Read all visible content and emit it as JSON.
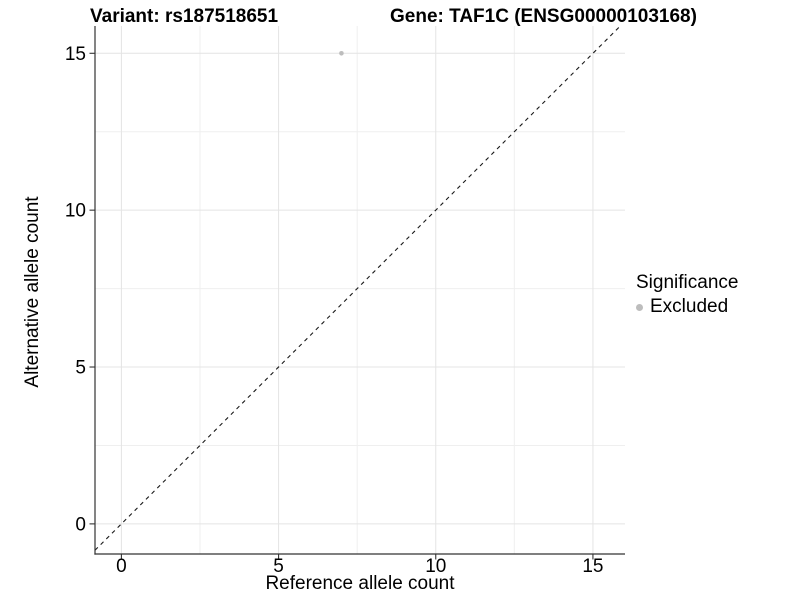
{
  "chart_data": {
    "type": "scatter",
    "title_left": "Variant: rs187518651",
    "title_right": "Gene: TAF1C (ENSG00000103168)",
    "variant_id": "rs187518651",
    "gene_symbol": "TAF1C",
    "gene_ensembl_id": "ENSG00000103168",
    "xlabel": "Reference allele count",
    "ylabel": "Alternative allele count",
    "xlim": [
      -0.84,
      16.02
    ],
    "ylim": [
      -0.96,
      15.87
    ],
    "x_major_ticks": [
      0,
      5,
      10,
      15
    ],
    "y_major_ticks": [
      0,
      5,
      10,
      15
    ],
    "x_minor_ticks": [
      2.5,
      7.5,
      12.5
    ],
    "y_minor_ticks": [
      2.5,
      7.5,
      12.5
    ],
    "grid": {
      "on": true,
      "major_color": "#e4e4e4",
      "minor_color": "#efefef"
    },
    "axis_line_color": "#333333",
    "tick_label_size": 19,
    "identity_line": {
      "slope": 1,
      "intercept": 0,
      "style": "dashed",
      "color": "#1a1a1a"
    },
    "series": [
      {
        "name": "Excluded",
        "marker": "circle",
        "color": "#bdbdbd",
        "points": [
          [
            7,
            15
          ]
        ]
      }
    ],
    "legend": {
      "title": "Significance",
      "position": "right",
      "entries": [
        {
          "label": "Excluded",
          "marker": "circle",
          "color": "#bdbdbd"
        }
      ]
    },
    "background_color": "#ffffff"
  }
}
